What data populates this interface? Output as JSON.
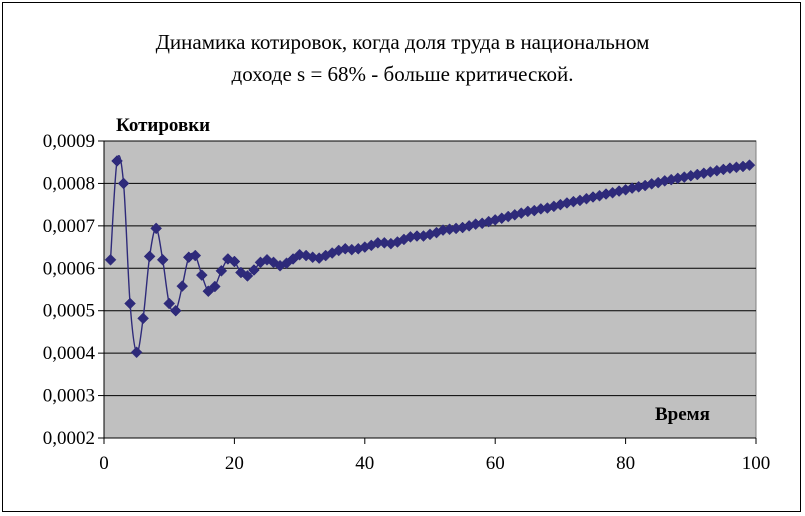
{
  "chart_data": {
    "type": "line",
    "title_line1": "Динамика котировок, когда доля труда в национальном",
    "title_line2": "доходе s = 68% - больше критической.",
    "ylabel": "Котировки",
    "xlabel": "Время",
    "xlim": [
      0,
      100
    ],
    "ylim": [
      0.0002,
      0.0009
    ],
    "xticks": [
      0,
      20,
      40,
      60,
      80,
      100
    ],
    "xtick_labels": [
      "0",
      "20",
      "40",
      "60",
      "80",
      "100"
    ],
    "yticks": [
      0.0002,
      0.0003,
      0.0004,
      0.0005,
      0.0006,
      0.0007,
      0.0008,
      0.0009
    ],
    "ytick_labels": [
      "0,0002",
      "0,0003",
      "0,0004",
      "0,0005",
      "0,0006",
      "0,0007",
      "0,0008",
      "0,0009"
    ],
    "grid": true,
    "plot_background": "#c0c0c0",
    "series": [
      {
        "color": "#2e2a7a",
        "marker": "diamond",
        "x": [
          1,
          2,
          3,
          4,
          5,
          6,
          7,
          8,
          9,
          10,
          11,
          12,
          13,
          14,
          15,
          16,
          17,
          18,
          19,
          20,
          21,
          22,
          23,
          24,
          25,
          26,
          27,
          28,
          29,
          30,
          31,
          32,
          33,
          34,
          35,
          36,
          37,
          38,
          39,
          40,
          41,
          42,
          43,
          44,
          45,
          46,
          47,
          48,
          49,
          50,
          51,
          52,
          53,
          54,
          55,
          56,
          57,
          58,
          59,
          60,
          61,
          62,
          63,
          64,
          65,
          66,
          67,
          68,
          69,
          70,
          71,
          72,
          73,
          74,
          75,
          76,
          77,
          78,
          79,
          80,
          81,
          82,
          83,
          84,
          85,
          86,
          87,
          88,
          89,
          90,
          91,
          92,
          93,
          94,
          95,
          96,
          97,
          98,
          99
        ],
        "y": [
          0.00062,
          0.000853,
          0.0008,
          0.000517,
          0.000402,
          0.000482,
          0.000628,
          0.000694,
          0.00062,
          0.000517,
          0.0005,
          0.000558,
          0.000626,
          0.00063,
          0.000584,
          0.000546,
          0.000557,
          0.000594,
          0.000622,
          0.000616,
          0.00059,
          0.000582,
          0.000596,
          0.000614,
          0.00062,
          0.000614,
          0.000606,
          0.000612,
          0.000622,
          0.000632,
          0.00063,
          0.000626,
          0.000624,
          0.00063,
          0.000636,
          0.000642,
          0.000646,
          0.000644,
          0.000646,
          0.00065,
          0.000654,
          0.00066,
          0.00066,
          0.000658,
          0.000662,
          0.000668,
          0.000674,
          0.000676,
          0.000676,
          0.00068,
          0.000684,
          0.00069,
          0.000692,
          0.000694,
          0.000696,
          0.0007,
          0.000704,
          0.000706,
          0.00071,
          0.000714,
          0.000718,
          0.000722,
          0.000726,
          0.00073,
          0.000734,
          0.000736,
          0.00074,
          0.000742,
          0.000746,
          0.00075,
          0.000754,
          0.000757,
          0.00076,
          0.000764,
          0.000768,
          0.000771,
          0.000775,
          0.000778,
          0.000782,
          0.000785,
          0.000789,
          0.000792,
          0.000795,
          0.000799,
          0.000802,
          0.000806,
          0.000809,
          0.000812,
          0.000815,
          0.000818,
          0.000821,
          0.000824,
          0.000827,
          0.00083,
          0.000833,
          0.000836,
          0.000838,
          0.00084,
          0.000843
        ]
      }
    ]
  }
}
